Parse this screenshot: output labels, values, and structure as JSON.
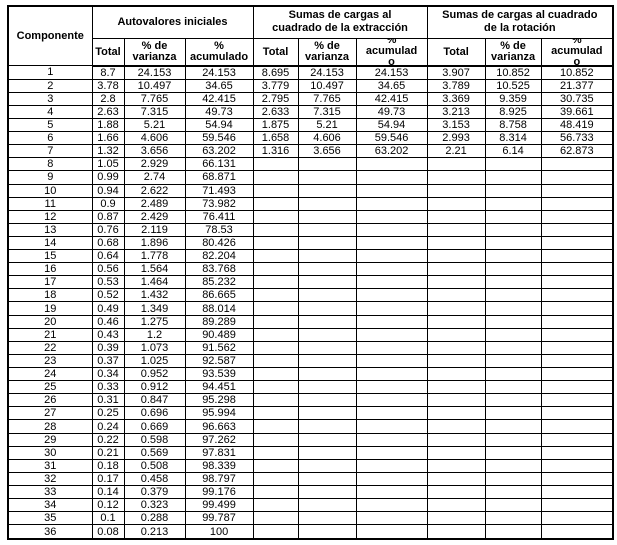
{
  "table": {
    "row_header": "Componente",
    "groups": [
      {
        "title": "Autovalores iniciales",
        "title_lines": [
          "Autovalores iniciales"
        ]
      },
      {
        "title": "Sumas de cargas al cuadrado de la extracción",
        "title_lines": [
          "Sumas de cargas al",
          "cuadrado de la extracción"
        ]
      },
      {
        "title": "Sumas de cargas al cuadrado de la rotación",
        "title_lines": [
          "Sumas de cargas al cuadrado",
          "de la rotación"
        ]
      }
    ],
    "subheaders": {
      "total": "Total",
      "pct_varianza_lines": [
        "% de",
        "varianza"
      ],
      "pct_acumulado_lines": [
        "%",
        "acumulado"
      ],
      "pct_acumulado_clip_lines": [
        "%",
        "acumulad",
        "o"
      ]
    },
    "rows": [
      {
        "componente": "1",
        "inicial": [
          "8.7",
          "24.153",
          "24.153"
        ],
        "extraccion": [
          "8.695",
          "24.153",
          "24.153"
        ],
        "rotacion": [
          "3.907",
          "10.852",
          "10.852"
        ]
      },
      {
        "componente": "2",
        "inicial": [
          "3.78",
          "10.497",
          "34.65"
        ],
        "extraccion": [
          "3.779",
          "10.497",
          "34.65"
        ],
        "rotacion": [
          "3.789",
          "10.525",
          "21.377"
        ]
      },
      {
        "componente": "3",
        "inicial": [
          "2.8",
          "7.765",
          "42.415"
        ],
        "extraccion": [
          "2.795",
          "7.765",
          "42.415"
        ],
        "rotacion": [
          "3.369",
          "9.359",
          "30.735"
        ]
      },
      {
        "componente": "4",
        "inicial": [
          "2.63",
          "7.315",
          "49.73"
        ],
        "extraccion": [
          "2.633",
          "7.315",
          "49.73"
        ],
        "rotacion": [
          "3.213",
          "8.925",
          "39.661"
        ]
      },
      {
        "componente": "5",
        "inicial": [
          "1.88",
          "5.21",
          "54.94"
        ],
        "extraccion": [
          "1.875",
          "5.21",
          "54.94"
        ],
        "rotacion": [
          "3.153",
          "8.758",
          "48.419"
        ]
      },
      {
        "componente": "6",
        "inicial": [
          "1.66",
          "4.606",
          "59.546"
        ],
        "extraccion": [
          "1.658",
          "4.606",
          "59.546"
        ],
        "rotacion": [
          "2.993",
          "8.314",
          "56.733"
        ]
      },
      {
        "componente": "7",
        "inicial": [
          "1.32",
          "3.656",
          "63.202"
        ],
        "extraccion": [
          "1.316",
          "3.656",
          "63.202"
        ],
        "rotacion": [
          "2.21",
          "6.14",
          "62.873"
        ]
      },
      {
        "componente": "8",
        "inicial": [
          "1.05",
          "2.929",
          "66.131"
        ]
      },
      {
        "componente": "9",
        "inicial": [
          "0.99",
          "2.74",
          "68.871"
        ]
      },
      {
        "componente": "10",
        "inicial": [
          "0.94",
          "2.622",
          "71.493"
        ]
      },
      {
        "componente": "11",
        "inicial": [
          "0.9",
          "2.489",
          "73.982"
        ]
      },
      {
        "componente": "12",
        "inicial": [
          "0.87",
          "2.429",
          "76.411"
        ]
      },
      {
        "componente": "13",
        "inicial": [
          "0.76",
          "2.119",
          "78.53"
        ]
      },
      {
        "componente": "14",
        "inicial": [
          "0.68",
          "1.896",
          "80.426"
        ]
      },
      {
        "componente": "15",
        "inicial": [
          "0.64",
          "1.778",
          "82.204"
        ]
      },
      {
        "componente": "16",
        "inicial": [
          "0.56",
          "1.564",
          "83.768"
        ]
      },
      {
        "componente": "17",
        "inicial": [
          "0.53",
          "1.464",
          "85.232"
        ]
      },
      {
        "componente": "18",
        "inicial": [
          "0.52",
          "1.432",
          "86.665"
        ]
      },
      {
        "componente": "19",
        "inicial": [
          "0.49",
          "1.349",
          "88.014"
        ]
      },
      {
        "componente": "20",
        "inicial": [
          "0.46",
          "1.275",
          "89.289"
        ]
      },
      {
        "componente": "21",
        "inicial": [
          "0.43",
          "1.2",
          "90.489"
        ]
      },
      {
        "componente": "22",
        "inicial": [
          "0.39",
          "1.073",
          "91.562"
        ]
      },
      {
        "componente": "23",
        "inicial": [
          "0.37",
          "1.025",
          "92.587"
        ]
      },
      {
        "componente": "24",
        "inicial": [
          "0.34",
          "0.952",
          "93.539"
        ]
      },
      {
        "componente": "25",
        "inicial": [
          "0.33",
          "0.912",
          "94.451"
        ]
      },
      {
        "componente": "26",
        "inicial": [
          "0.31",
          "0.847",
          "95.298"
        ]
      },
      {
        "componente": "27",
        "inicial": [
          "0.25",
          "0.696",
          "95.994"
        ]
      },
      {
        "componente": "28",
        "inicial": [
          "0.24",
          "0.669",
          "96.663"
        ]
      },
      {
        "componente": "29",
        "inicial": [
          "0.22",
          "0.598",
          "97.262"
        ]
      },
      {
        "componente": "30",
        "inicial": [
          "0.21",
          "0.569",
          "97.831"
        ]
      },
      {
        "componente": "31",
        "inicial": [
          "0.18",
          "0.508",
          "98.339"
        ]
      },
      {
        "componente": "32",
        "inicial": [
          "0.17",
          "0.458",
          "98.797"
        ]
      },
      {
        "componente": "33",
        "inicial": [
          "0.14",
          "0.379",
          "99.176"
        ]
      },
      {
        "componente": "34",
        "inicial": [
          "0.12",
          "0.323",
          "99.499"
        ]
      },
      {
        "componente": "35",
        "inicial": [
          "0.1",
          "0.288",
          "99.787"
        ]
      },
      {
        "componente": "36",
        "inicial": [
          "0.08",
          "0.213",
          "100"
        ]
      }
    ]
  }
}
